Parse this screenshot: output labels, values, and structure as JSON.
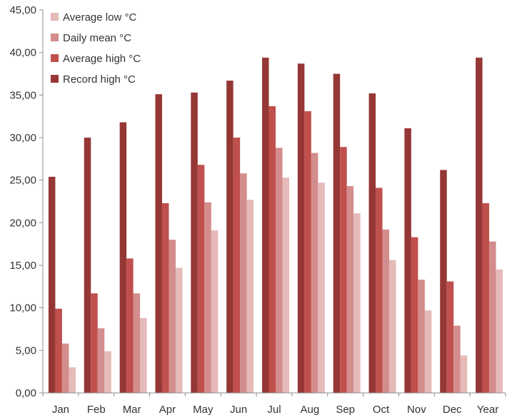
{
  "chart_data": {
    "type": "bar",
    "categories": [
      "Jan",
      "Feb",
      "Mar",
      "Apr",
      "May",
      "Jun",
      "Jul",
      "Aug",
      "Sep",
      "Oct",
      "Nov",
      "Dec",
      "Year"
    ],
    "y_tick_labels": [
      "0,00",
      "5,00",
      "10,00",
      "15,00",
      "20,00",
      "25,00",
      "30,00",
      "35,00",
      "40,00",
      "45,00"
    ],
    "ylim": [
      0,
      45
    ],
    "grid": false,
    "legend_position": "top-left",
    "series": [
      {
        "name": "Record high °C",
        "color": "#953735",
        "values": [
          25.4,
          30.0,
          31.8,
          35.1,
          35.3,
          36.7,
          39.4,
          38.7,
          37.5,
          35.2,
          31.1,
          26.2,
          39.4
        ]
      },
      {
        "name": "Average high °C",
        "color": "#C0504D",
        "values": [
          9.9,
          11.7,
          15.8,
          22.3,
          26.8,
          30.0,
          33.7,
          33.1,
          28.9,
          24.1,
          18.3,
          13.1,
          22.3
        ]
      },
      {
        "name": "Daily mean °C",
        "color": "#D38D8C",
        "values": [
          5.8,
          7.6,
          11.7,
          18.0,
          22.4,
          25.8,
          28.8,
          28.2,
          24.3,
          19.2,
          13.3,
          7.9,
          17.8
        ]
      },
      {
        "name": "Average low °C",
        "color": "#E5BAB9",
        "values": [
          3.0,
          4.9,
          8.8,
          14.7,
          19.1,
          22.7,
          25.3,
          24.7,
          21.1,
          15.6,
          9.7,
          4.4,
          14.5
        ]
      }
    ],
    "legend_order": [
      "Average low °C",
      "Daily mean °C",
      "Average high °C",
      "Record high °C"
    ]
  }
}
